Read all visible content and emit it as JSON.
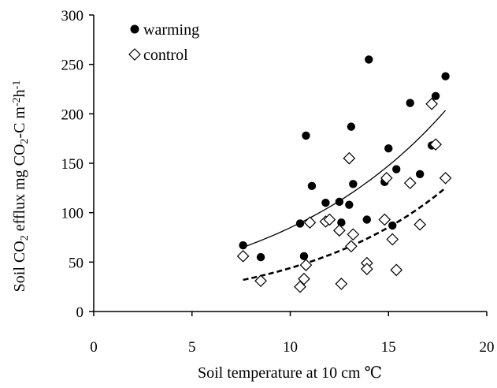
{
  "chart_data": {
    "type": "scatter",
    "title": "",
    "xlabel": "Soil temperature at 10 cm",
    "xlabel_unit": "℃",
    "ylabel_parts": [
      "Soil CO",
      "2",
      " efflux  mg CO",
      "2",
      "-C m",
      "-2",
      "h",
      "-1"
    ],
    "xlim": [
      0,
      20
    ],
    "ylim": [
      0,
      300
    ],
    "x_ticks": [
      0,
      5,
      10,
      15,
      20
    ],
    "y_ticks": [
      0,
      50,
      100,
      150,
      200,
      250,
      300
    ],
    "grid": false,
    "legend_position": "top-left",
    "series": [
      {
        "name": "warming",
        "marker": "filled-circle",
        "color": "#000000",
        "points": [
          [
            7.6,
            67
          ],
          [
            8.5,
            55
          ],
          [
            10.5,
            89
          ],
          [
            10.7,
            56
          ],
          [
            10.8,
            178
          ],
          [
            11.1,
            127
          ],
          [
            11.8,
            110
          ],
          [
            12.5,
            111
          ],
          [
            12.6,
            90
          ],
          [
            13.0,
            108
          ],
          [
            13.1,
            187
          ],
          [
            13.2,
            129
          ],
          [
            13.9,
            93
          ],
          [
            14.0,
            255
          ],
          [
            14.8,
            131
          ],
          [
            15.0,
            165
          ],
          [
            15.2,
            87
          ],
          [
            15.4,
            144
          ],
          [
            16.1,
            211
          ],
          [
            16.6,
            139
          ],
          [
            17.2,
            168
          ],
          [
            17.4,
            218
          ],
          [
            17.9,
            238
          ]
        ],
        "trend": {
          "style": "solid",
          "x": [
            7.6,
            17.9
          ],
          "y0": 65,
          "b": 0.1108
        }
      },
      {
        "name": "control",
        "marker": "open-diamond",
        "color": "#000000",
        "points": [
          [
            7.6,
            56
          ],
          [
            8.5,
            31
          ],
          [
            10.5,
            25
          ],
          [
            10.7,
            33
          ],
          [
            10.8,
            47
          ],
          [
            11.0,
            90
          ],
          [
            11.8,
            91
          ],
          [
            12.0,
            93
          ],
          [
            12.5,
            82
          ],
          [
            12.6,
            28
          ],
          [
            13.0,
            155
          ],
          [
            13.1,
            66
          ],
          [
            13.2,
            78
          ],
          [
            13.9,
            49
          ],
          [
            13.9,
            43
          ],
          [
            14.8,
            93
          ],
          [
            14.9,
            135
          ],
          [
            15.2,
            73
          ],
          [
            15.4,
            42
          ],
          [
            16.1,
            130
          ],
          [
            16.6,
            88
          ],
          [
            17.2,
            210
          ],
          [
            17.4,
            169
          ],
          [
            17.9,
            135
          ]
        ],
        "trend": {
          "style": "dashed",
          "x": [
            7.6,
            17.9
          ],
          "y0": 32,
          "b": 0.1323
        }
      }
    ]
  }
}
